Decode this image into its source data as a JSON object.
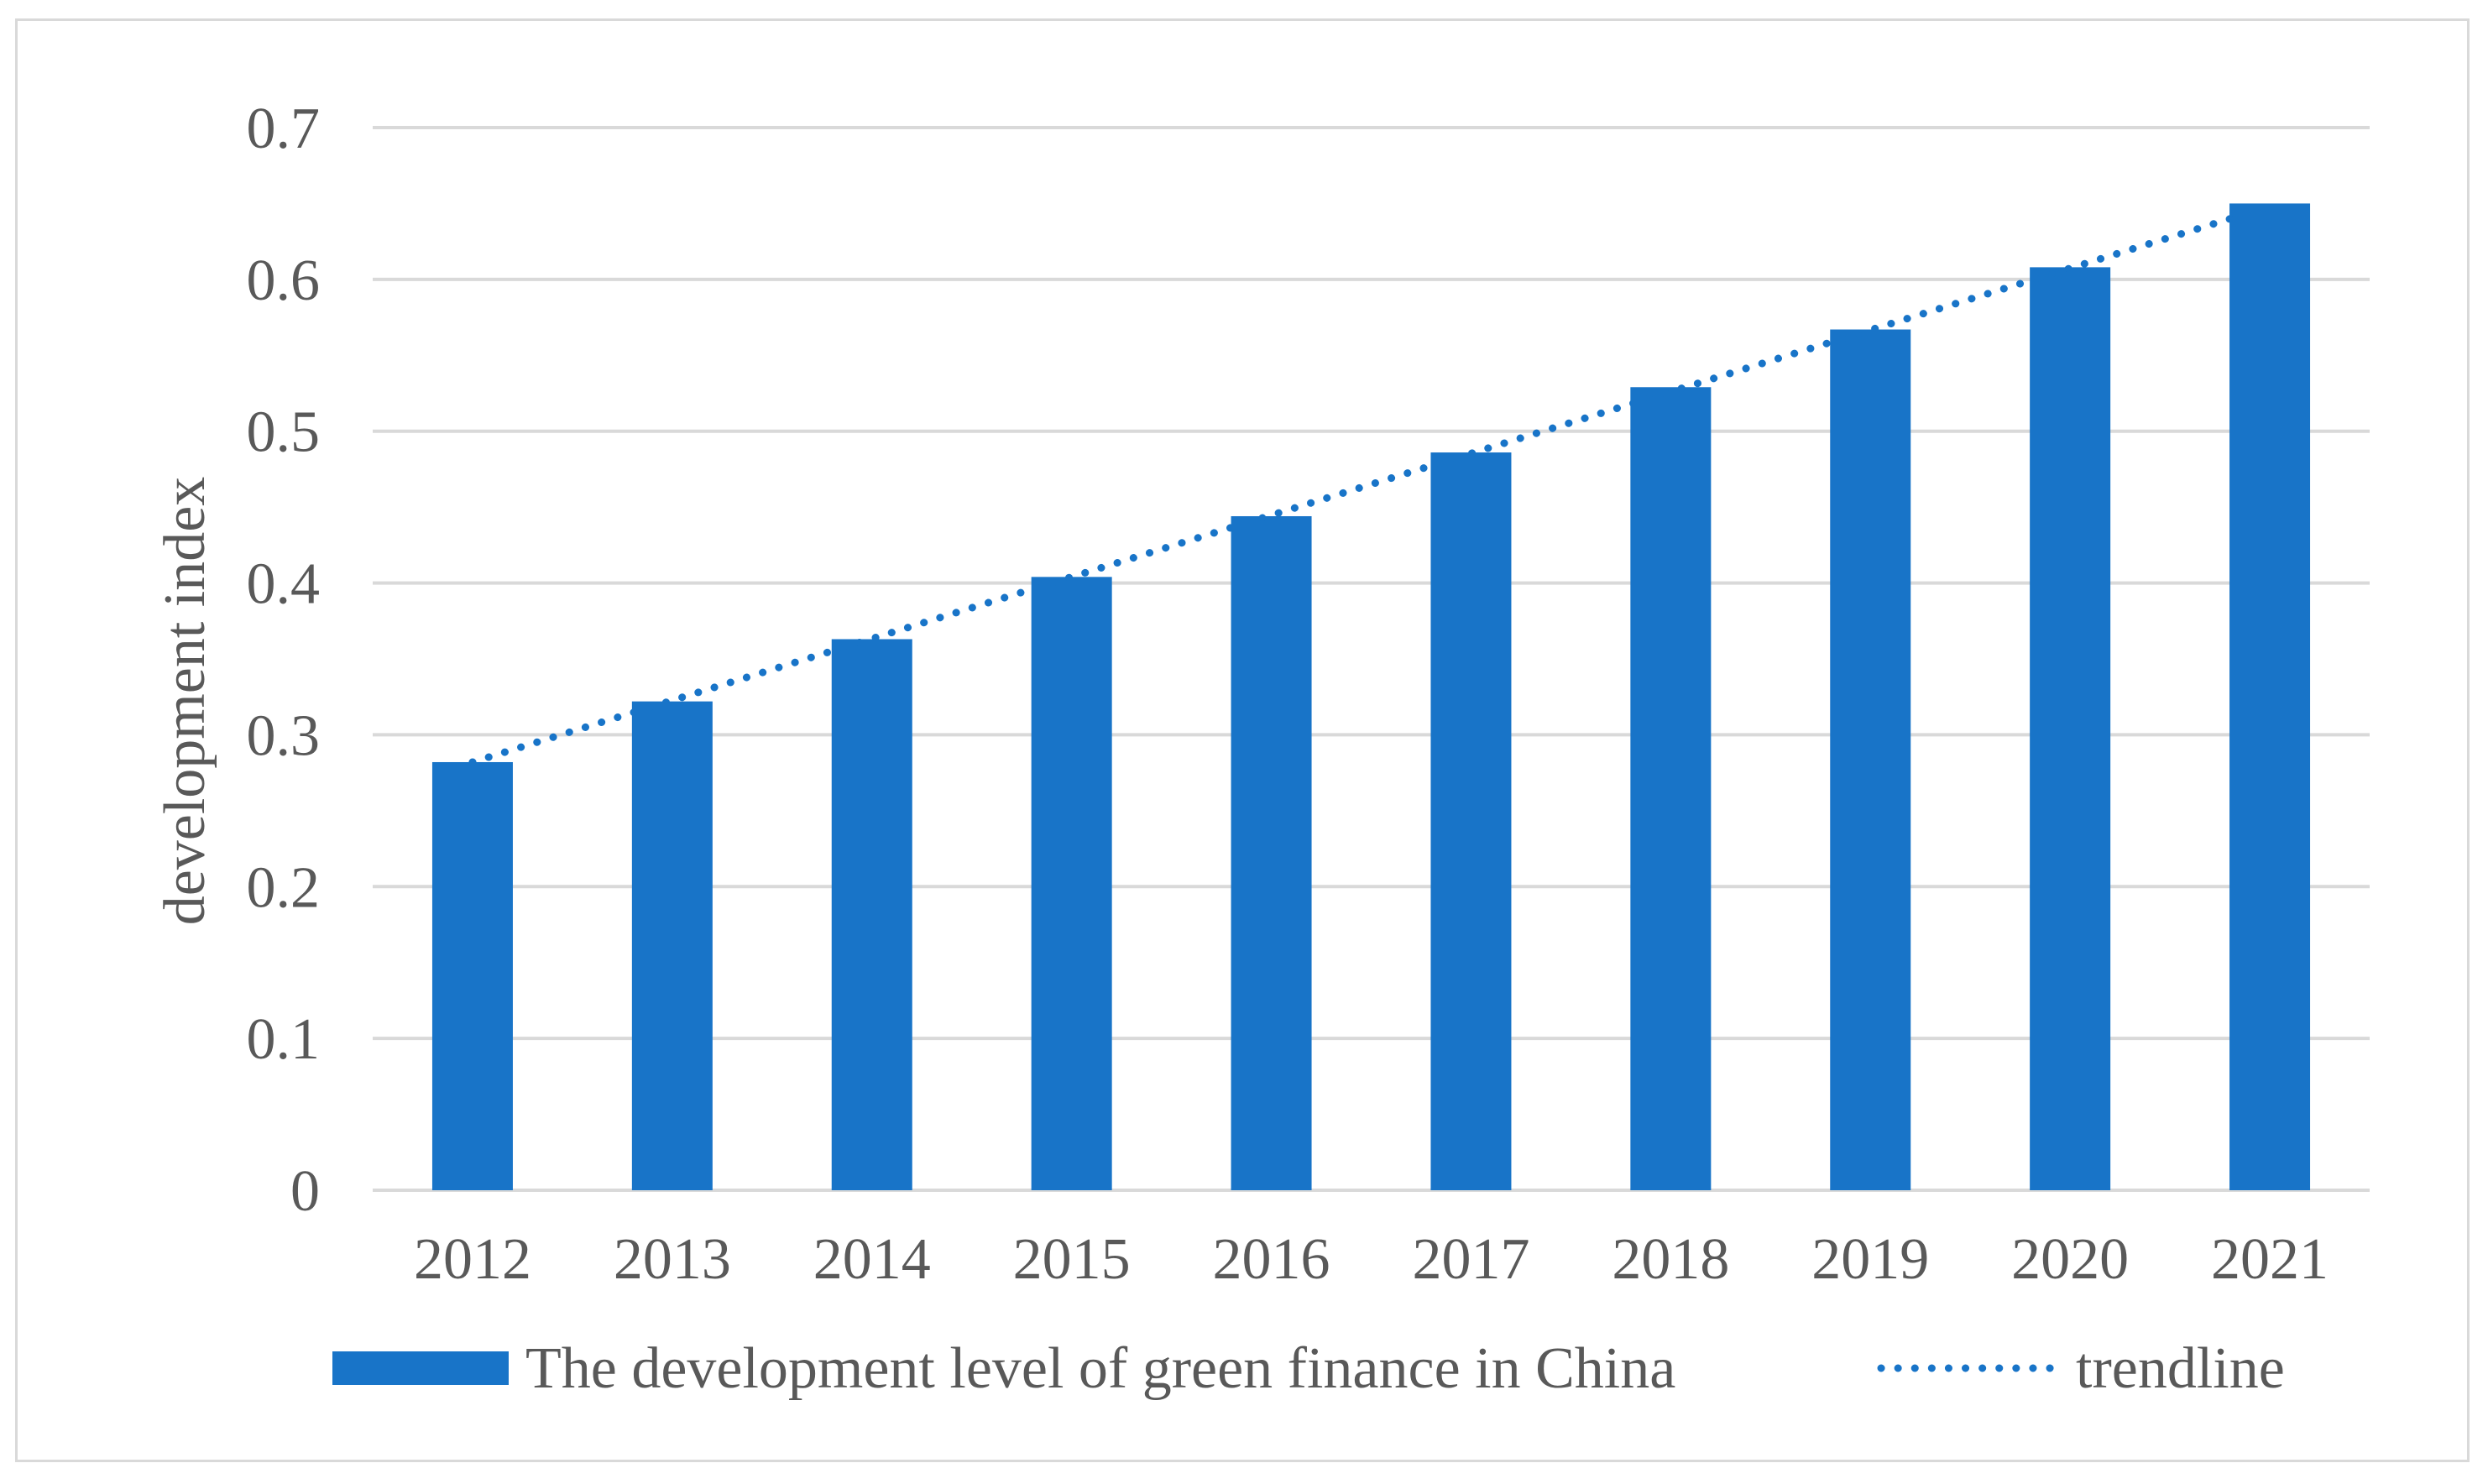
{
  "chart_data": {
    "type": "bar",
    "title": "",
    "xlabel": "",
    "ylabel": "development index",
    "ylim": [
      0,
      0.7
    ],
    "yticks": [
      0,
      0.1,
      0.2,
      0.3,
      0.4,
      0.5,
      0.6,
      0.7
    ],
    "ytick_labels": [
      "0",
      "0.1",
      "0.2",
      "0.3",
      "0.4",
      "0.5",
      "0.6",
      "0.7"
    ],
    "grid": true,
    "categories": [
      "2012",
      "2013",
      "2014",
      "2015",
      "2016",
      "2017",
      "2018",
      "2019",
      "2020",
      "2021"
    ],
    "series": [
      {
        "name": "The development level of green finance in China",
        "values": [
          0.282,
          0.322,
          0.363,
          0.404,
          0.444,
          0.486,
          0.529,
          0.567,
          0.608,
          0.65
        ],
        "color": "#1874C8"
      }
    ],
    "trendline": {
      "name": "trendline",
      "style": "dotted",
      "start_value": 0.282,
      "end_value": 0.648,
      "color": "#1874C8"
    },
    "legend_position": "bottom",
    "colors": {
      "grid": "#d9d9d9",
      "text": "#595959",
      "border": "#d9d9d9"
    }
  }
}
